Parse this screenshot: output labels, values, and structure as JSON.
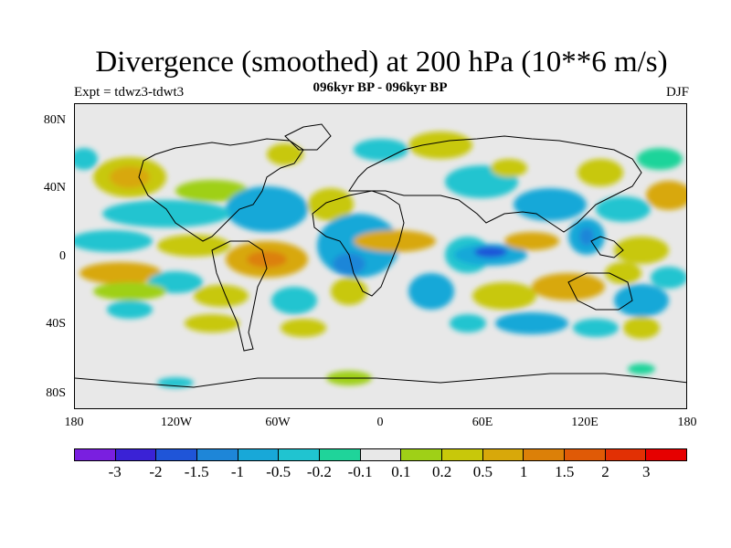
{
  "title": "Divergence (smoothed) at 200 hPa (10**6 m/s)",
  "subtitle": "096kyr BP - 096kyr BP",
  "expt": "Expt = tdwz3-tdwt3",
  "season": "DJF",
  "lat_labels": [
    "80N",
    "40N",
    "0",
    "40S",
    "80S"
  ],
  "lon_labels": [
    "180",
    "120W",
    "60W",
    "0",
    "60E",
    "120E",
    "180"
  ],
  "colorbar": {
    "labels": [
      "-3",
      "-2",
      "-1.5",
      "-1",
      "-0.5",
      "-0.2",
      "-0.1",
      "0.1",
      "0.2",
      "0.5",
      "1",
      "1.5",
      "2",
      "3"
    ],
    "colors": [
      "#7a1fe0",
      "#3a22d6",
      "#1f55d8",
      "#1e86d8",
      "#18a8d8",
      "#20c4d0",
      "#1fd49a",
      "#e8e8e8",
      "#9fd017",
      "#c8c80a",
      "#d8a80a",
      "#dc8008",
      "#e05a06",
      "#e23004",
      "#e60000"
    ]
  },
  "map": {
    "lat_range": [
      -90,
      90
    ],
    "lon_range": [
      -180,
      180
    ],
    "background": "#e8e8e8",
    "coastline_color": "#000000"
  }
}
